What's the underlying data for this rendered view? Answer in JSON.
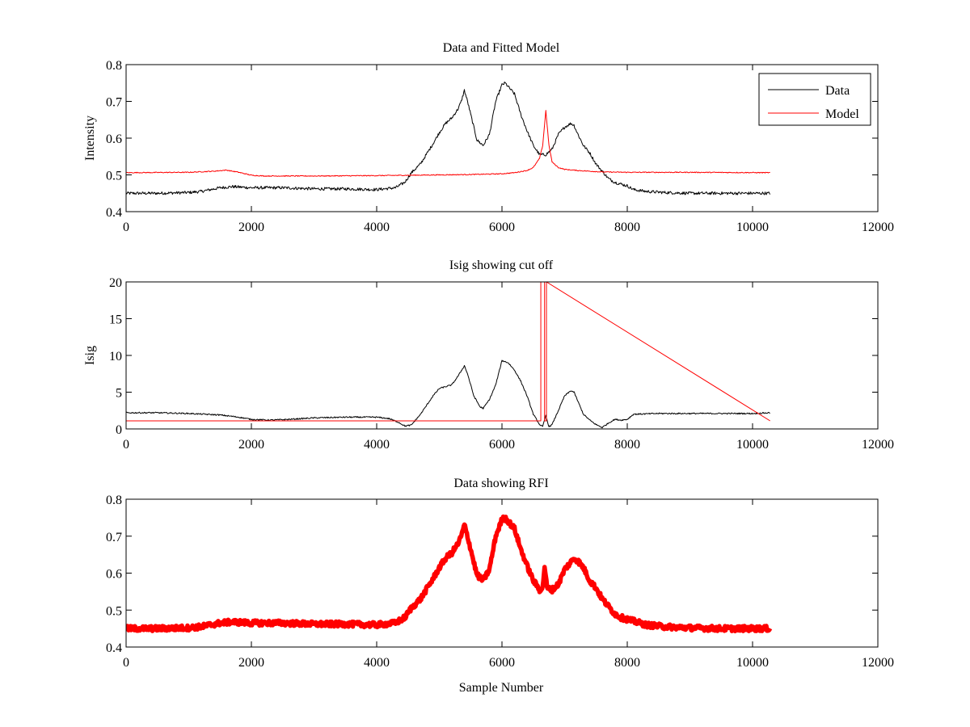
{
  "figure_colors": {
    "data": "#000000",
    "model": "#ff0000",
    "rfi": "#ff0000"
  },
  "chart_data": [
    {
      "type": "line",
      "title": "Data and Fitted Model",
      "xlabel": "",
      "ylabel": "Intensity",
      "xlim": [
        0,
        12000
      ],
      "ylim": [
        0.4,
        0.8
      ],
      "xticks": [
        0,
        2000,
        4000,
        6000,
        8000,
        10000,
        12000
      ],
      "yticks": [
        0.4,
        0.5,
        0.6,
        0.7,
        0.8
      ],
      "legend": {
        "position": "top-right",
        "entries": [
          "Data",
          "Model"
        ]
      },
      "series": [
        {
          "name": "Data",
          "color": "#000000",
          "noise": 0.004,
          "x": [
            0,
            500,
            1000,
            1200,
            1500,
            1700,
            2000,
            2500,
            3000,
            3500,
            4000,
            4300,
            4450,
            4550,
            4700,
            4900,
            5000,
            5100,
            5200,
            5300,
            5350,
            5400,
            5450,
            5500,
            5600,
            5700,
            5800,
            5900,
            6000,
            6050,
            6100,
            6200,
            6300,
            6400,
            6500,
            6600,
            6700,
            6800,
            6900,
            7000,
            7100,
            7150,
            7200,
            7300,
            7400,
            7500,
            7600,
            7700,
            7800,
            7900,
            8000,
            8100,
            8300,
            8600,
            9000,
            9500,
            10000,
            10280
          ],
          "y": [
            0.45,
            0.45,
            0.452,
            0.455,
            0.465,
            0.468,
            0.465,
            0.465,
            0.462,
            0.462,
            0.46,
            0.465,
            0.48,
            0.505,
            0.53,
            0.585,
            0.615,
            0.64,
            0.655,
            0.68,
            0.7,
            0.73,
            0.7,
            0.665,
            0.595,
            0.58,
            0.61,
            0.7,
            0.745,
            0.75,
            0.74,
            0.72,
            0.665,
            0.62,
            0.58,
            0.555,
            0.555,
            0.57,
            0.61,
            0.63,
            0.64,
            0.635,
            0.615,
            0.58,
            0.56,
            0.53,
            0.51,
            0.49,
            0.48,
            0.475,
            0.47,
            0.46,
            0.455,
            0.452,
            0.45,
            0.45,
            0.45,
            0.45
          ]
        },
        {
          "name": "Model",
          "color": "#ff0000",
          "noise": 0.0012,
          "x": [
            0,
            1000,
            1400,
            1600,
            1800,
            2000,
            2200,
            3000,
            4000,
            5000,
            5500,
            6000,
            6200,
            6400,
            6500,
            6600,
            6650,
            6700,
            6750,
            6800,
            6900,
            7000,
            7200,
            7400,
            7600,
            8000,
            9000,
            10280
          ],
          "y": [
            0.506,
            0.507,
            0.51,
            0.513,
            0.507,
            0.499,
            0.497,
            0.497,
            0.498,
            0.5,
            0.501,
            0.503,
            0.506,
            0.512,
            0.52,
            0.545,
            0.58,
            0.675,
            0.58,
            0.535,
            0.52,
            0.515,
            0.512,
            0.51,
            0.508,
            0.507,
            0.507,
            0.506
          ]
        }
      ]
    },
    {
      "type": "line",
      "title": "Isig showing cut off",
      "xlabel": "",
      "ylabel": "Isig",
      "xlim": [
        0,
        12000
      ],
      "ylim": [
        0,
        20
      ],
      "xticks": [
        0,
        2000,
        4000,
        6000,
        8000,
        10000,
        12000
      ],
      "yticks": [
        0,
        5,
        10,
        15,
        20
      ],
      "series": [
        {
          "name": "Isig",
          "color": "#000000",
          "noise": 0.09,
          "x": [
            0,
            500,
            1000,
            1500,
            1800,
            2000,
            2300,
            2600,
            3000,
            3500,
            4000,
            4200,
            4350,
            4450,
            4550,
            4700,
            4900,
            5000,
            5200,
            5300,
            5400,
            5450,
            5550,
            5650,
            5700,
            5800,
            5900,
            6000,
            6100,
            6200,
            6300,
            6400,
            6500,
            6600,
            6650,
            6700,
            6750,
            6800,
            6900,
            7000,
            7100,
            7150,
            7200,
            7300,
            7400,
            7500,
            7600,
            7700,
            7800,
            7900,
            8000,
            8100,
            8500,
            9000,
            9500,
            10000,
            10280
          ],
          "y": [
            2.2,
            2.2,
            2.1,
            1.9,
            1.6,
            1.3,
            1.2,
            1.3,
            1.5,
            1.6,
            1.6,
            1.4,
            0.9,
            0.4,
            0.5,
            2.0,
            4.5,
            5.5,
            6.0,
            7.2,
            8.6,
            7.5,
            4.5,
            3.0,
            2.8,
            4.0,
            6.0,
            9.3,
            9.0,
            8.0,
            6.5,
            4.5,
            2.0,
            0.6,
            0.3,
            1.8,
            0.3,
            0.6,
            2.5,
            4.5,
            5.2,
            5.0,
            4.0,
            2.0,
            1.2,
            0.6,
            0.2,
            0.8,
            1.3,
            1.2,
            1.3,
            2.0,
            2.1,
            2.1,
            2.1,
            2.1,
            2.2
          ]
        },
        {
          "name": "Cut off",
          "color": "#ff0000",
          "noise": 0,
          "x": [
            0,
            6620,
            6620,
            6680,
            6680,
            6710,
            6710,
            10280
          ],
          "y": [
            1.1,
            1.1,
            20,
            20,
            1.1,
            1.1,
            20,
            1.1
          ]
        }
      ]
    },
    {
      "type": "line",
      "title": "Data showing RFI",
      "xlabel": "Sample Number",
      "ylabel": "",
      "xlim": [
        0,
        12000
      ],
      "ylim": [
        0.4,
        0.8
      ],
      "xticks": [
        0,
        2000,
        4000,
        6000,
        8000,
        10000,
        12000
      ],
      "yticks": [
        0.4,
        0.5,
        0.6,
        0.7,
        0.8
      ],
      "series": [
        {
          "name": "Data with RFI",
          "color": "#ff0000",
          "noise": 0.007,
          "x": [
            0,
            500,
            1000,
            1200,
            1500,
            1700,
            2000,
            2500,
            3000,
            3500,
            4000,
            4300,
            4450,
            4550,
            4700,
            4900,
            5000,
            5100,
            5200,
            5300,
            5350,
            5400,
            5450,
            5500,
            5600,
            5700,
            5800,
            5900,
            6000,
            6050,
            6100,
            6200,
            6300,
            6400,
            6500,
            6600,
            6650,
            6680,
            6720,
            6800,
            6900,
            7000,
            7100,
            7150,
            7200,
            7300,
            7400,
            7500,
            7600,
            7700,
            7800,
            7900,
            8000,
            8100,
            8300,
            8600,
            9000,
            9500,
            10000,
            10280
          ],
          "y": [
            0.45,
            0.45,
            0.452,
            0.455,
            0.465,
            0.468,
            0.465,
            0.465,
            0.462,
            0.462,
            0.46,
            0.465,
            0.48,
            0.505,
            0.53,
            0.585,
            0.615,
            0.64,
            0.655,
            0.68,
            0.7,
            0.73,
            0.7,
            0.665,
            0.595,
            0.58,
            0.61,
            0.7,
            0.745,
            0.75,
            0.74,
            0.72,
            0.665,
            0.62,
            0.58,
            0.555,
            0.56,
            0.62,
            0.56,
            0.555,
            0.57,
            0.61,
            0.63,
            0.64,
            0.635,
            0.615,
            0.58,
            0.56,
            0.53,
            0.51,
            0.49,
            0.48,
            0.475,
            0.47,
            0.46,
            0.455,
            0.452,
            0.45,
            0.45,
            0.45
          ]
        }
      ]
    }
  ]
}
